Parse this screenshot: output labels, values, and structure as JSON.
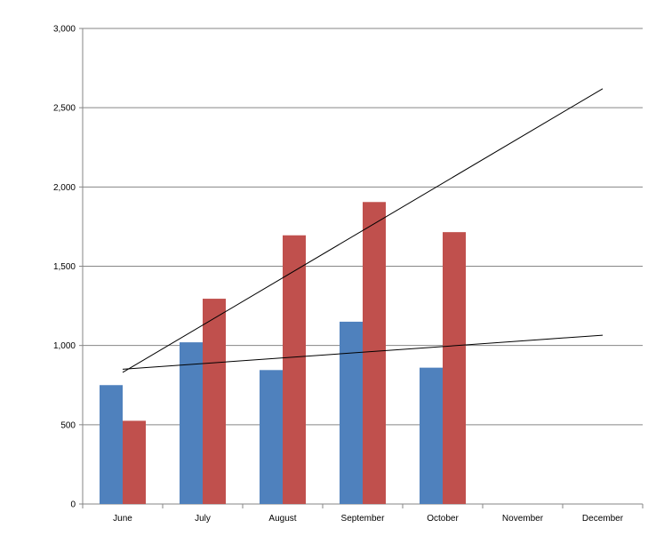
{
  "chart_data": {
    "type": "bar",
    "title": "",
    "xlabel": "",
    "ylabel": "",
    "categories": [
      "June",
      "July",
      "August",
      "September",
      "October",
      "November",
      "December"
    ],
    "ylim": [
      0,
      3000
    ],
    "y_ticks": [
      0,
      500,
      1000,
      1500,
      2000,
      2500,
      3000
    ],
    "y_tick_labels": [
      "0",
      "500",
      "1,000",
      "1,500",
      "2,000",
      "2,500",
      "3,000"
    ],
    "grid": true,
    "legend": "none",
    "series": [
      {
        "color": "#4F81BD",
        "values": [
          750,
          1020,
          845,
          1150,
          860,
          null,
          null
        ]
      },
      {
        "color": "#C0504D",
        "values": [
          525,
          1295,
          1695,
          1905,
          1715,
          null,
          null
        ]
      }
    ],
    "trendlines": [
      {
        "color": "#000000",
        "from": {
          "x": "June",
          "y": 830
        },
        "to": {
          "x": "December",
          "y": 2620
        }
      },
      {
        "color": "#000000",
        "from": {
          "x": "June",
          "y": 850
        },
        "to": {
          "x": "December",
          "y": 1065
        }
      }
    ]
  }
}
